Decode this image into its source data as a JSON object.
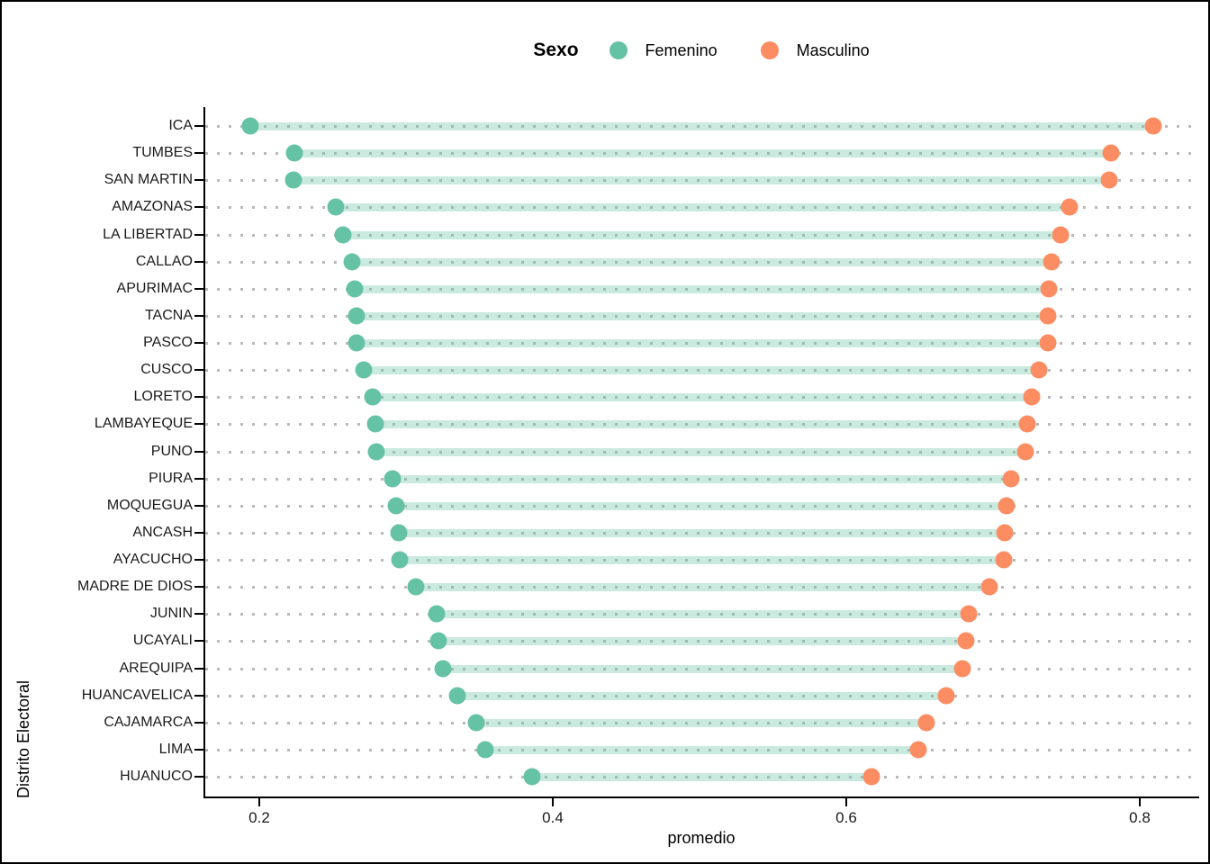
{
  "legend": {
    "title": "Sexo",
    "items": [
      {
        "label": "Femenino",
        "color": "#66C2A5"
      },
      {
        "label": "Masculino",
        "color": "#FC8D62"
      }
    ]
  },
  "axes": {
    "x_title": "promedio",
    "y_title": "Distrito Electoral",
    "x_tick_labels": [
      "0.2",
      "0.4",
      "0.6",
      "0.8"
    ]
  },
  "chart_data": {
    "type": "scatter",
    "variant": "dumbbell",
    "title": "",
    "xlabel": "promedio",
    "ylabel": "Distrito Electoral",
    "xlim": [
      0.162,
      0.834
    ],
    "xticks": [
      0.2,
      0.4,
      0.6,
      0.8
    ],
    "grid": "horizontal-dotted",
    "legend_position": "top-center",
    "legend_title": "Sexo",
    "connector_color": "#66C2A5",
    "connector_opacity": 0.35,
    "categories": [
      "ICA",
      "TUMBES",
      "SAN MARTIN",
      "AMAZONAS",
      "LA LIBERTAD",
      "CALLAO",
      "APURIMAC",
      "TACNA",
      "PASCO",
      "CUSCO",
      "LORETO",
      "LAMBAYEQUE",
      "PUNO",
      "PIURA",
      "MOQUEGUA",
      "ANCASH",
      "AYACUCHO",
      "MADRE DE DIOS",
      "JUNIN",
      "UCAYALI",
      "AREQUIPA",
      "HUANCAVELICA",
      "CAJAMARCA",
      "LIMA",
      "HUANUCO"
    ],
    "series": [
      {
        "name": "Femenino",
        "color": "#66C2A5",
        "values": [
          0.193,
          0.223,
          0.222,
          0.251,
          0.256,
          0.262,
          0.264,
          0.265,
          0.265,
          0.27,
          0.276,
          0.278,
          0.279,
          0.29,
          0.292,
          0.294,
          0.295,
          0.306,
          0.32,
          0.321,
          0.324,
          0.334,
          0.347,
          0.353,
          0.385
        ]
      },
      {
        "name": "Masculino",
        "color": "#FC8D62",
        "values": [
          0.809,
          0.78,
          0.779,
          0.752,
          0.746,
          0.74,
          0.738,
          0.737,
          0.737,
          0.731,
          0.726,
          0.723,
          0.722,
          0.712,
          0.709,
          0.708,
          0.707,
          0.697,
          0.683,
          0.681,
          0.679,
          0.668,
          0.654,
          0.649,
          0.617
        ]
      }
    ]
  }
}
